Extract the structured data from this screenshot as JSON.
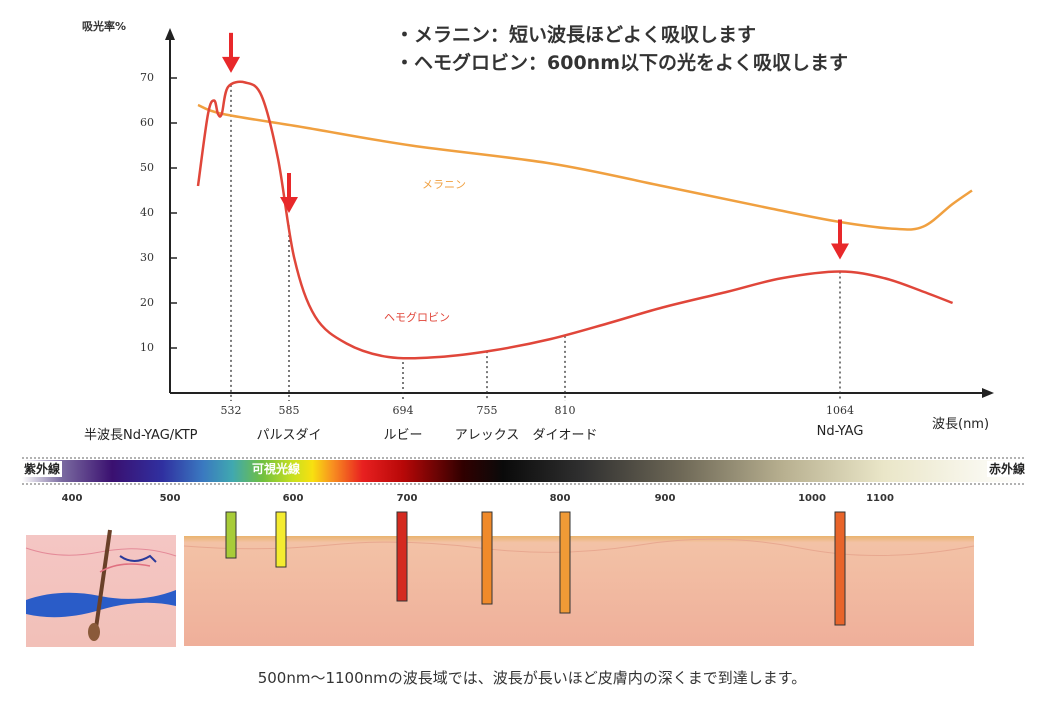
{
  "notes": {
    "melanin": "・メラニン：短い波長ほどよく吸収します",
    "hemoglobin": "・ヘモグロビン：600nm以下の光をよく吸収します"
  },
  "chart_data": {
    "type": "line",
    "ylabel": "吸光率%",
    "xlabel": "波長(nm)",
    "y_ticks": [
      "10",
      "20",
      "30",
      "40",
      "50",
      "60",
      "70"
    ],
    "ylim": [
      0,
      75
    ],
    "series": [
      {
        "name": "メラニン",
        "color": "#f0a040",
        "points": [
          [
            400,
            64
          ],
          [
            500,
            62
          ],
          [
            600,
            59
          ],
          [
            700,
            55
          ],
          [
            800,
            51
          ],
          [
            900,
            46
          ],
          [
            1000,
            41
          ],
          [
            1064,
            38
          ],
          [
            1120,
            36.5
          ],
          [
            1150,
            37
          ],
          [
            1180,
            42
          ],
          [
            1200,
            45
          ]
        ]
      },
      {
        "name": "ヘモグロビン",
        "color": "#e0463a",
        "points": [
          [
            400,
            46
          ],
          [
            440,
            62
          ],
          [
            465,
            65
          ],
          [
            480,
            62
          ],
          [
            495,
            62
          ],
          [
            520,
            68
          ],
          [
            545,
            69
          ],
          [
            560,
            66
          ],
          [
            575,
            52
          ],
          [
            590,
            30
          ],
          [
            610,
            17
          ],
          [
            640,
            11
          ],
          [
            680,
            8
          ],
          [
            720,
            8
          ],
          [
            760,
            9.5
          ],
          [
            800,
            12
          ],
          [
            850,
            15.5
          ],
          [
            900,
            19
          ],
          [
            960,
            22.5
          ],
          [
            1010,
            25.5
          ],
          [
            1064,
            27
          ],
          [
            1110,
            25.5
          ],
          [
            1150,
            22.5
          ],
          [
            1180,
            20
          ]
        ]
      }
    ],
    "lasers": [
      {
        "wavelength": "532",
        "name": "半波長Nd-YAG/KTP",
        "arrow": true
      },
      {
        "wavelength": "585",
        "name": "パルスダイ",
        "arrow": true
      },
      {
        "wavelength": "694",
        "name": "ルビー",
        "arrow": false
      },
      {
        "wavelength": "755",
        "name": "アレックス",
        "arrow": false
      },
      {
        "wavelength": "810",
        "name": "ダイオード",
        "arrow": false
      },
      {
        "wavelength": "1064",
        "name": "Nd-YAG",
        "arrow": true
      }
    ]
  },
  "spectrum": {
    "uv_label": "紫外線",
    "visible_label": "可視光線",
    "ir_label": "赤外線",
    "numbers": [
      "400",
      "500",
      "600",
      "700",
      "800",
      "900",
      "1000",
      "1100"
    ]
  },
  "caption": "500nm～1100nmの波長域では、波長が長いほど皮膚内の深くまで到達します。",
  "colors": {
    "arrow": "#e8282a",
    "axis": "#222222",
    "skin": "#f1b4a0",
    "skin_top": "#e6b070"
  }
}
